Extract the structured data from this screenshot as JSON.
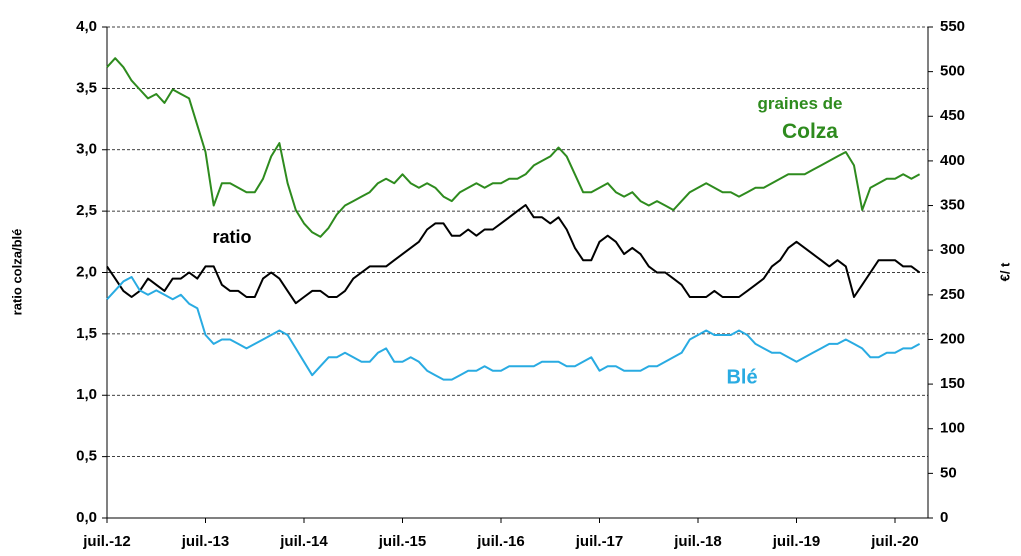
{
  "chart_data": {
    "type": "line",
    "y_label": "ratio colza/blé",
    "y2_label": "€/ t",
    "x": [
      "2012-07",
      "2012-08",
      "2012-09",
      "2012-10",
      "2012-11",
      "2012-12",
      "2013-01",
      "2013-02",
      "2013-03",
      "2013-04",
      "2013-05",
      "2013-06",
      "2013-07",
      "2013-08",
      "2013-09",
      "2013-10",
      "2013-11",
      "2013-12",
      "2014-01",
      "2014-02",
      "2014-03",
      "2014-04",
      "2014-05",
      "2014-06",
      "2014-07",
      "2014-08",
      "2014-09",
      "2014-10",
      "2014-11",
      "2014-12",
      "2015-01",
      "2015-02",
      "2015-03",
      "2015-04",
      "2015-05",
      "2015-06",
      "2015-07",
      "2015-08",
      "2015-09",
      "2015-10",
      "2015-11",
      "2015-12",
      "2016-01",
      "2016-02",
      "2016-03",
      "2016-04",
      "2016-05",
      "2016-06",
      "2016-07",
      "2016-08",
      "2016-09",
      "2016-10",
      "2016-11",
      "2016-12",
      "2017-01",
      "2017-02",
      "2017-03",
      "2017-04",
      "2017-05",
      "2017-06",
      "2017-07",
      "2017-08",
      "2017-09",
      "2017-10",
      "2017-11",
      "2017-12",
      "2018-01",
      "2018-02",
      "2018-03",
      "2018-04",
      "2018-05",
      "2018-06",
      "2018-07",
      "2018-08",
      "2018-09",
      "2018-10",
      "2018-11",
      "2018-12",
      "2019-01",
      "2019-02",
      "2019-03",
      "2019-04",
      "2019-05",
      "2019-06",
      "2019-07",
      "2019-08",
      "2019-09",
      "2019-10",
      "2019-11",
      "2019-12",
      "2020-01",
      "2020-02",
      "2020-03",
      "2020-04",
      "2020-05",
      "2020-06",
      "2020-07",
      "2020-08",
      "2020-09",
      "2020-10"
    ],
    "series": [
      {
        "name": "ratio",
        "color": "#000000",
        "axis": "y",
        "values": [
          2.05,
          1.95,
          1.85,
          1.8,
          1.85,
          1.95,
          1.9,
          1.85,
          1.95,
          1.95,
          2.0,
          1.95,
          2.05,
          2.05,
          1.9,
          1.85,
          1.85,
          1.8,
          1.8,
          1.95,
          2.0,
          1.95,
          1.85,
          1.75,
          1.8,
          1.85,
          1.85,
          1.8,
          1.8,
          1.85,
          1.95,
          2.0,
          2.05,
          2.05,
          2.05,
          2.1,
          2.15,
          2.2,
          2.25,
          2.35,
          2.4,
          2.4,
          2.3,
          2.3,
          2.35,
          2.3,
          2.35,
          2.35,
          2.4,
          2.45,
          2.5,
          2.55,
          2.45,
          2.45,
          2.4,
          2.45,
          2.35,
          2.2,
          2.1,
          2.1,
          2.25,
          2.3,
          2.25,
          2.15,
          2.2,
          2.15,
          2.05,
          2.0,
          2.0,
          1.95,
          1.9,
          1.8,
          1.8,
          1.8,
          1.85,
          1.8,
          1.8,
          1.8,
          1.85,
          1.9,
          1.95,
          2.05,
          2.1,
          2.2,
          2.25,
          2.2,
          2.15,
          2.1,
          2.05,
          2.1,
          2.05,
          1.8,
          1.9,
          2.0,
          2.1,
          2.1,
          2.1,
          2.05,
          2.05,
          2.0
        ]
      },
      {
        "name": "graines de Colza",
        "color": "#2e8b1e",
        "axis": "y2",
        "values": [
          505,
          515,
          505,
          490,
          480,
          470,
          475,
          465,
          480,
          475,
          470,
          440,
          410,
          350,
          375,
          375,
          370,
          365,
          365,
          380,
          405,
          420,
          375,
          345,
          330,
          320,
          315,
          325,
          340,
          350,
          355,
          360,
          365,
          375,
          380,
          375,
          385,
          375,
          370,
          375,
          370,
          360,
          355,
          365,
          370,
          375,
          370,
          375,
          375,
          380,
          380,
          385,
          395,
          400,
          405,
          415,
          405,
          385,
          365,
          365,
          370,
          375,
          365,
          360,
          365,
          355,
          350,
          355,
          350,
          345,
          355,
          365,
          370,
          375,
          370,
          365,
          365,
          360,
          365,
          370,
          370,
          375,
          380,
          385,
          385,
          385,
          390,
          395,
          400,
          405,
          410,
          395,
          345,
          370,
          375,
          380,
          380,
          385,
          380,
          385
        ]
      },
      {
        "name": "Blé",
        "color": "#29abe2",
        "axis": "y2",
        "values": [
          245,
          255,
          265,
          270,
          255,
          250,
          255,
          250,
          245,
          250,
          240,
          235,
          205,
          195,
          200,
          200,
          195,
          190,
          195,
          200,
          205,
          210,
          205,
          190,
          175,
          160,
          170,
          180,
          180,
          185,
          180,
          175,
          175,
          185,
          190,
          175,
          175,
          180,
          175,
          165,
          160,
          155,
          155,
          160,
          165,
          165,
          170,
          165,
          165,
          170,
          170,
          170,
          170,
          175,
          175,
          175,
          170,
          170,
          175,
          180,
          165,
          170,
          170,
          165,
          165,
          165,
          170,
          170,
          175,
          180,
          185,
          200,
          205,
          210,
          205,
          205,
          205,
          210,
          205,
          195,
          190,
          185,
          185,
          180,
          175,
          180,
          185,
          190,
          195,
          195,
          200,
          195,
          190,
          180,
          180,
          185,
          185,
          190,
          190,
          195
        ]
      }
    ],
    "xticks": [
      {
        "value": "2012-07",
        "label": "juil.-12"
      },
      {
        "value": "2013-07",
        "label": "juil.-13"
      },
      {
        "value": "2014-07",
        "label": "juil.-14"
      },
      {
        "value": "2015-07",
        "label": "juil.-15"
      },
      {
        "value": "2016-07",
        "label": "juil.-16"
      },
      {
        "value": "2017-07",
        "label": "juil.-17"
      },
      {
        "value": "2018-07",
        "label": "juil.-18"
      },
      {
        "value": "2019-07",
        "label": "juil.-19"
      },
      {
        "value": "2020-07",
        "label": "juil.-20"
      }
    ],
    "ylim": [
      0,
      4
    ],
    "yticks": [
      {
        "value": 0,
        "label": "0,0"
      },
      {
        "value": 0.5,
        "label": "0,5"
      },
      {
        "value": 1,
        "label": "1,0"
      },
      {
        "value": 1.5,
        "label": "1,5"
      },
      {
        "value": 2,
        "label": "2,0"
      },
      {
        "value": 2.5,
        "label": "2,5"
      },
      {
        "value": 3,
        "label": "3,0"
      },
      {
        "value": 3.5,
        "label": "3,5"
      },
      {
        "value": 4,
        "label": "4,0"
      }
    ],
    "y2lim": [
      0,
      550
    ],
    "y2ticks": [
      0,
      50,
      100,
      150,
      200,
      250,
      300,
      350,
      400,
      450,
      500,
      550
    ],
    "grid": true
  }
}
